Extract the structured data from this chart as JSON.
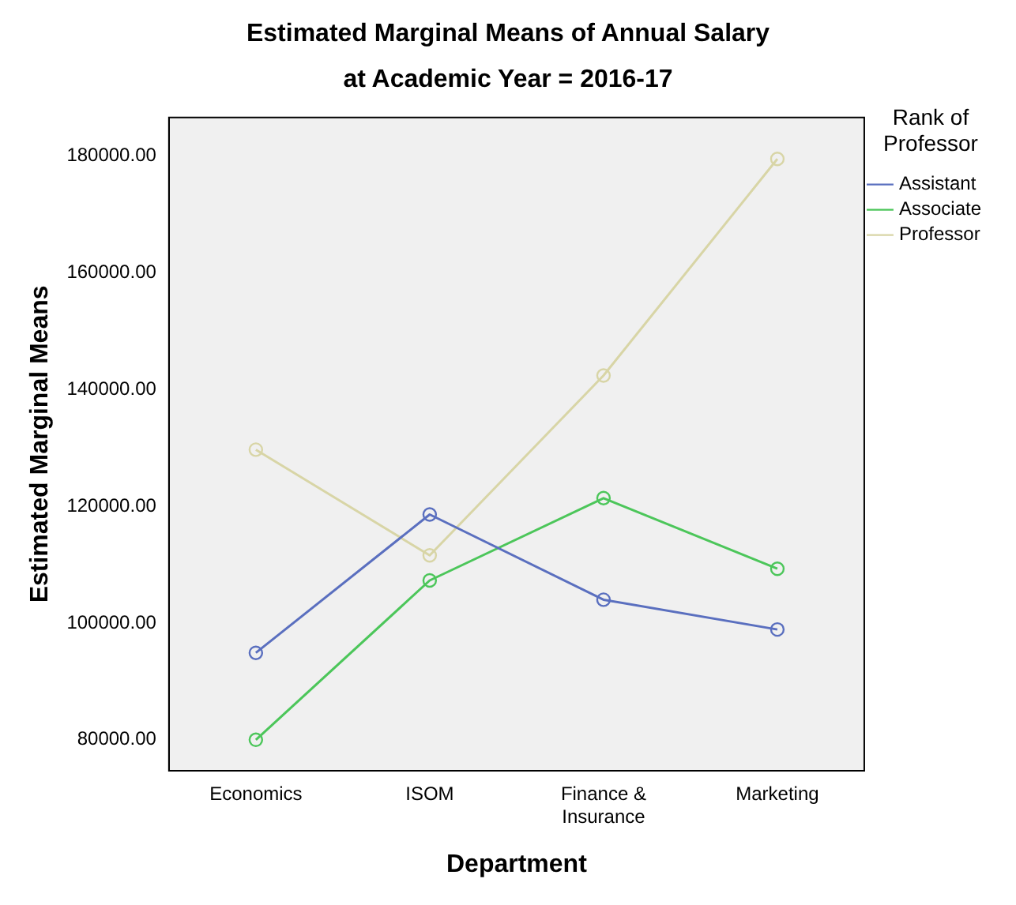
{
  "chart_data": {
    "type": "line",
    "title": "Estimated Marginal Means of Annual Salary",
    "subtitle": "at Academic Year = 2016-17",
    "xlabel": "Department",
    "ylabel": "Estimated Marginal Means",
    "legend_title": "Rank of Professor",
    "categories": [
      "Economics",
      "ISOM",
      "Finance & Insurance",
      "Marketing"
    ],
    "series": [
      {
        "name": "Assistant",
        "color": "#5a6fbf",
        "values": [
          94900,
          118600,
          104000,
          98900
        ]
      },
      {
        "name": "Associate",
        "color": "#4cc65a",
        "values": [
          80000,
          107300,
          121400,
          109300
        ]
      },
      {
        "name": "Professor",
        "color": "#d8d5a6",
        "values": [
          129700,
          111600,
          142400,
          179500
        ]
      }
    ],
    "ylim": [
      74700,
      186600
    ],
    "yticks": [
      {
        "value": 80000,
        "label": "80000.00"
      },
      {
        "value": 100000,
        "label": "100000.00"
      },
      {
        "value": 120000,
        "label": "120000.00"
      },
      {
        "value": 140000,
        "label": "140000.00"
      },
      {
        "value": 160000,
        "label": "160000.00"
      },
      {
        "value": 180000,
        "label": "180000.00"
      }
    ],
    "grid": false,
    "legend": "right",
    "marker": "circle",
    "line_style": "solid"
  }
}
